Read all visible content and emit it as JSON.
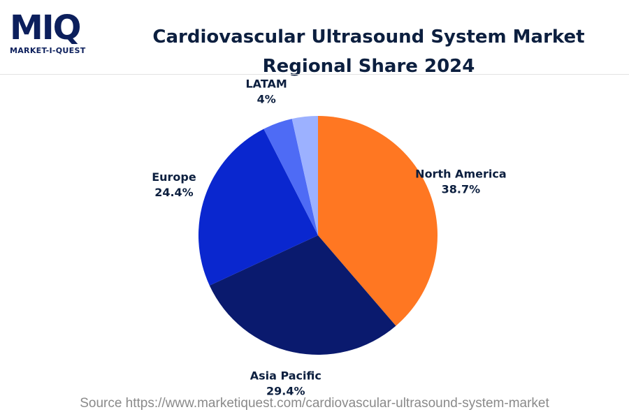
{
  "logo": {
    "mark": "MIQ",
    "name": "MARKET-I-QUEST"
  },
  "chart_data": {
    "type": "pie",
    "title": "Cardiovascular Ultrasound System Market Regional Share 2024",
    "categories": [
      "North America",
      "Asia Pacific",
      "Europe",
      "LATAM",
      null
    ],
    "values": [
      38.7,
      29.4,
      24.4,
      4,
      3.5
    ],
    "value_labels": [
      "38.7%",
      "29.4%",
      "24.4%",
      "4%",
      null
    ],
    "colors": [
      "#ff7722",
      "#0a1a6e",
      "#0a27cf",
      "#4e6bf5",
      "#9cb1ff"
    ]
  },
  "source": "Source https://www.marketiquest.com/cardiovascular-ultrasound-system-market"
}
